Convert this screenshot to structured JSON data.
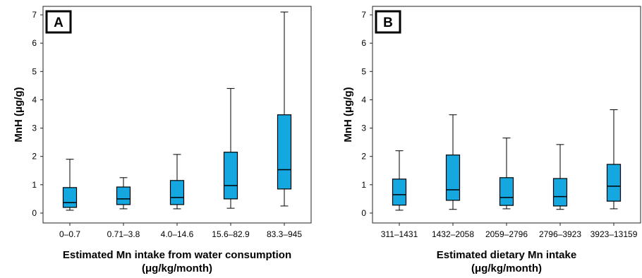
{
  "chart_data": [
    {
      "type": "box",
      "panel_label": "A",
      "categories": [
        "0–0.7",
        "0.71–3.8",
        "4.0–14.6",
        "15.6–82.9",
        "83.3–945"
      ],
      "boxes": [
        {
          "min": 0.1,
          "q1": 0.2,
          "median": 0.37,
          "q3": 0.9,
          "max": 1.9
        },
        {
          "min": 0.15,
          "q1": 0.3,
          "median": 0.5,
          "q3": 0.92,
          "max": 1.25
        },
        {
          "min": 0.15,
          "q1": 0.3,
          "median": 0.55,
          "q3": 1.15,
          "max": 2.07
        },
        {
          "min": 0.17,
          "q1": 0.5,
          "median": 0.97,
          "q3": 2.15,
          "max": 4.4
        },
        {
          "min": 0.25,
          "q1": 0.85,
          "median": 1.53,
          "q3": 3.47,
          "max": 7.1
        }
      ],
      "ylabel": "MnH (μg/g)",
      "xlabel": [
        "Estimated Mn intake from water consumption",
        "(μg/kg/month)"
      ],
      "yticks": [
        0,
        1,
        2,
        3,
        4,
        5,
        6,
        7
      ],
      "ylim": [
        -0.35,
        7.3
      ],
      "grid": false,
      "box_color": "#14a7e0"
    },
    {
      "type": "box",
      "panel_label": "B",
      "categories": [
        "311–1431",
        "1432–2058",
        "2059–2796",
        "2796–3923",
        "3923–13159"
      ],
      "boxes": [
        {
          "min": 0.1,
          "q1": 0.28,
          "median": 0.65,
          "q3": 1.2,
          "max": 2.2
        },
        {
          "min": 0.13,
          "q1": 0.45,
          "median": 0.82,
          "q3": 2.05,
          "max": 3.47
        },
        {
          "min": 0.15,
          "q1": 0.27,
          "median": 0.55,
          "q3": 1.25,
          "max": 2.65
        },
        {
          "min": 0.13,
          "q1": 0.25,
          "median": 0.58,
          "q3": 1.22,
          "max": 2.42
        },
        {
          "min": 0.15,
          "q1": 0.42,
          "median": 0.95,
          "q3": 1.72,
          "max": 3.65
        }
      ],
      "ylabel": "MnH (μg/g)",
      "xlabel": [
        "Estimated dietary Mn intake",
        "(μg/kg/month)"
      ],
      "yticks": [
        0,
        1,
        2,
        3,
        4,
        5,
        6,
        7
      ],
      "ylim": [
        -0.35,
        7.3
      ],
      "grid": false,
      "box_color": "#14a7e0"
    }
  ]
}
